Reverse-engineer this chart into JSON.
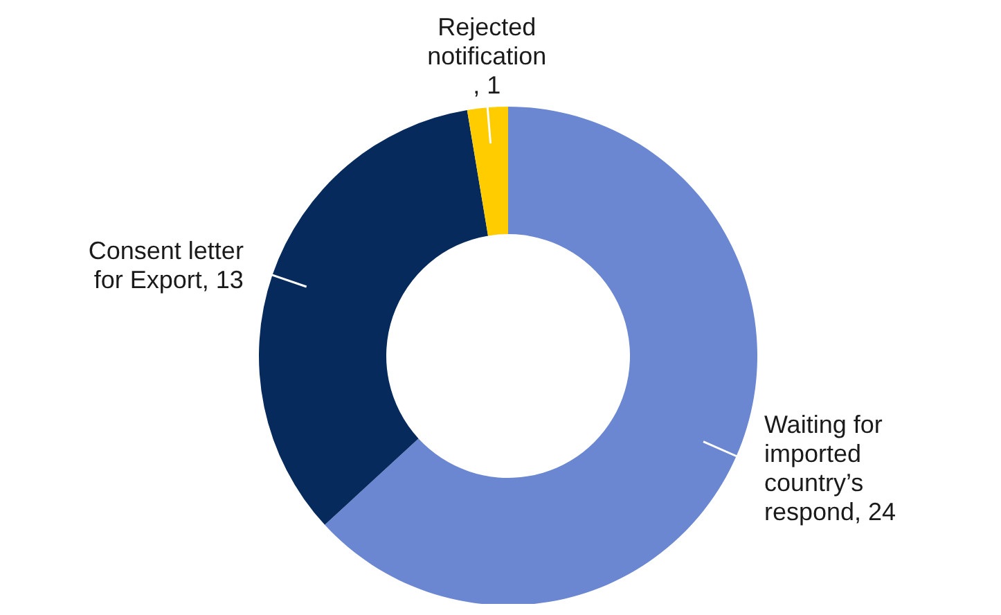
{
  "chart_data": {
    "type": "donut",
    "categories": [
      "Waiting for imported country’s respond",
      "Consent letter for Export",
      "Rejected notification"
    ],
    "values": [
      24,
      13,
      1
    ],
    "colors": [
      "#6b87d1",
      "#062a5c",
      "#ffcc00"
    ],
    "value_labels": [
      ", 24",
      ", 13",
      ", 1"
    ],
    "legend": false
  }
}
